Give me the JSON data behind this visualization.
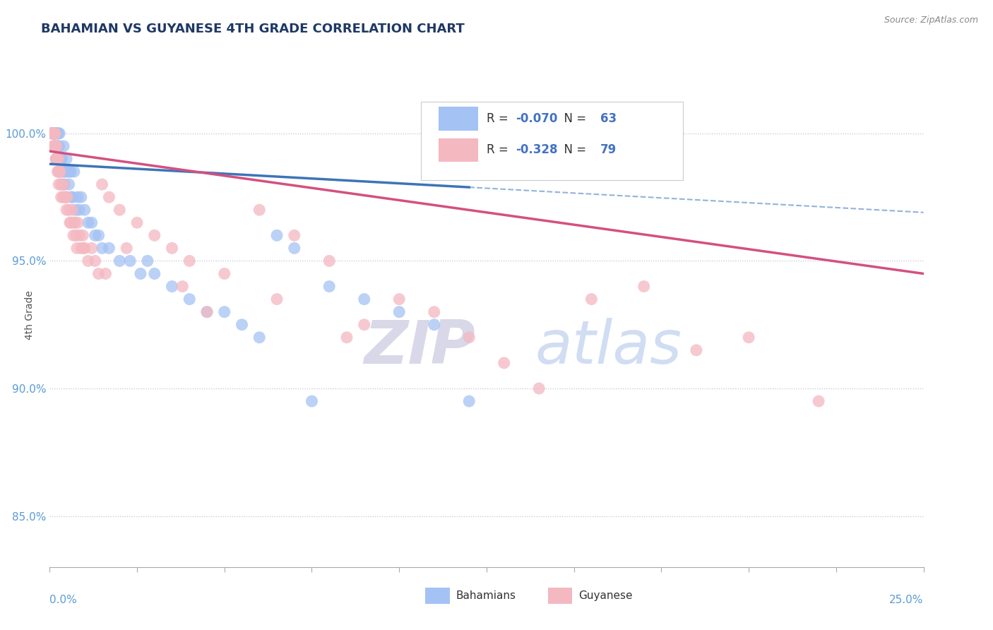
{
  "title": "BAHAMIAN VS GUYANESE 4TH GRADE CORRELATION CHART",
  "source_text": "Source: ZipAtlas.com",
  "ylabel": "4th Grade",
  "xlim": [
    0.0,
    25.0
  ],
  "ylim": [
    83.0,
    103.5
  ],
  "yticks": [
    85.0,
    90.0,
    95.0,
    100.0
  ],
  "ytick_labels": [
    "85.0%",
    "90.0%",
    "95.0%",
    "100.0%"
  ],
  "blue_color": "#a4c2f4",
  "pink_color": "#f4b8c1",
  "blue_R": -0.07,
  "blue_N": 63,
  "pink_R": -0.328,
  "pink_N": 79,
  "blue_line_color": "#3d74b8",
  "pink_line_color": "#d45080",
  "grid_color": "#9999bb",
  "background_color": "#ffffff",
  "R_color": "#4472c4",
  "N_color": "#4472c4",
  "blue_line_x_solid_end": 12.0,
  "blue_scatter_x": [
    0.05,
    0.08,
    0.1,
    0.12,
    0.13,
    0.15,
    0.16,
    0.17,
    0.18,
    0.2,
    0.22,
    0.24,
    0.25,
    0.27,
    0.28,
    0.3,
    0.32,
    0.35,
    0.38,
    0.4,
    0.45,
    0.48,
    0.5,
    0.55,
    0.58,
    0.6,
    0.65,
    0.7,
    0.75,
    0.8,
    0.9,
    1.0,
    1.1,
    1.2,
    1.3,
    1.5,
    1.7,
    2.0,
    2.3,
    2.6,
    3.0,
    3.5,
    4.0,
    4.5,
    5.0,
    5.5,
    6.0,
    6.5,
    7.0,
    8.0,
    9.0,
    10.0,
    11.0,
    12.0,
    0.14,
    0.19,
    0.23,
    0.42,
    0.62,
    0.85,
    1.4,
    2.8,
    7.5
  ],
  "blue_scatter_y": [
    100.0,
    100.0,
    100.0,
    100.0,
    100.0,
    100.0,
    99.5,
    100.0,
    99.0,
    100.0,
    100.0,
    99.0,
    100.0,
    99.5,
    100.0,
    98.5,
    99.0,
    99.0,
    98.5,
    99.5,
    98.5,
    99.0,
    98.5,
    98.0,
    98.5,
    98.5,
    97.5,
    98.5,
    97.0,
    97.5,
    97.5,
    97.0,
    96.5,
    96.5,
    96.0,
    95.5,
    95.5,
    95.0,
    95.0,
    94.5,
    94.5,
    94.0,
    93.5,
    93.0,
    93.0,
    92.5,
    92.0,
    96.0,
    95.5,
    94.0,
    93.5,
    93.0,
    92.5,
    89.5,
    100.0,
    99.5,
    99.5,
    98.0,
    97.5,
    97.0,
    96.0,
    95.0,
    89.5
  ],
  "pink_scatter_x": [
    0.04,
    0.06,
    0.08,
    0.1,
    0.11,
    0.12,
    0.13,
    0.14,
    0.15,
    0.16,
    0.17,
    0.18,
    0.19,
    0.2,
    0.22,
    0.24,
    0.25,
    0.28,
    0.3,
    0.32,
    0.35,
    0.38,
    0.4,
    0.42,
    0.45,
    0.48,
    0.5,
    0.55,
    0.6,
    0.65,
    0.7,
    0.75,
    0.8,
    0.85,
    0.9,
    0.95,
    1.0,
    1.1,
    1.2,
    1.3,
    1.5,
    1.7,
    2.0,
    2.5,
    3.0,
    3.5,
    4.0,
    5.0,
    6.0,
    7.0,
    8.0,
    10.0,
    11.0,
    12.0,
    14.0,
    17.0,
    20.0,
    22.0,
    0.26,
    0.33,
    0.58,
    0.68,
    0.78,
    1.4,
    2.2,
    3.8,
    6.5,
    9.0,
    13.0,
    15.5,
    18.5,
    0.09,
    0.23,
    0.47,
    0.72,
    0.97,
    1.6,
    4.5,
    8.5
  ],
  "pink_scatter_y": [
    100.0,
    100.0,
    100.0,
    100.0,
    100.0,
    100.0,
    99.5,
    100.0,
    99.5,
    100.0,
    99.5,
    99.0,
    99.0,
    99.5,
    99.0,
    98.5,
    99.0,
    98.5,
    98.5,
    98.0,
    98.0,
    97.5,
    98.0,
    97.5,
    97.5,
    97.0,
    97.5,
    97.0,
    96.5,
    97.0,
    96.5,
    96.0,
    96.5,
    96.0,
    95.5,
    96.0,
    95.5,
    95.0,
    95.5,
    95.0,
    98.0,
    97.5,
    97.0,
    96.5,
    96.0,
    95.5,
    95.0,
    94.5,
    97.0,
    96.0,
    95.0,
    93.5,
    93.0,
    92.0,
    90.0,
    94.0,
    92.0,
    89.5,
    98.0,
    97.5,
    96.5,
    96.0,
    95.5,
    94.5,
    95.5,
    94.0,
    93.5,
    92.5,
    91.0,
    93.5,
    91.5,
    99.5,
    98.5,
    97.5,
    96.5,
    95.5,
    94.5,
    93.0,
    92.0
  ]
}
